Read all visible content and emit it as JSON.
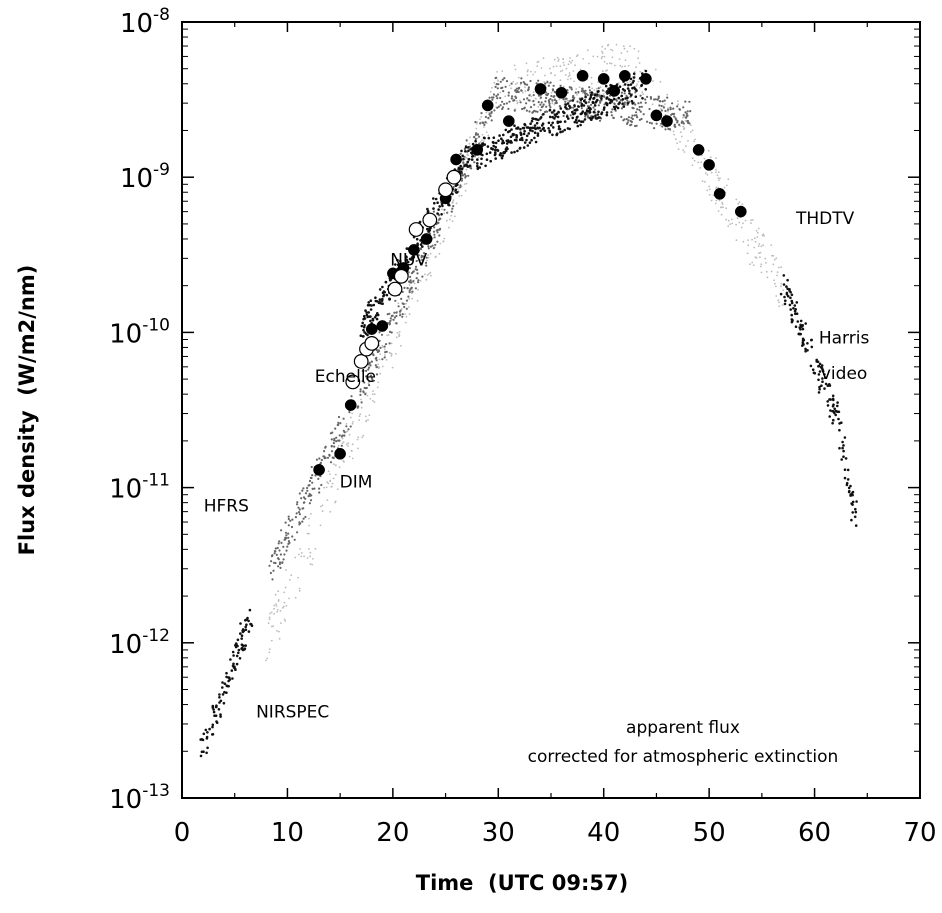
{
  "chart_data": {
    "type": "scatter",
    "xlabel": "Time  (UTC 09:57)",
    "ylabel": "Flux density  (W/m2/nm)",
    "xlim": [
      0,
      70
    ],
    "ylim": [
      1e-13,
      1e-08
    ],
    "y_scale": "log",
    "x_ticks": [
      0,
      10,
      20,
      30,
      40,
      50,
      60,
      70
    ],
    "y_ticks": [
      {
        "base": "10",
        "exp": "-13",
        "value": 1e-13
      },
      {
        "base": "10",
        "exp": "-12",
        "value": 1e-12
      },
      {
        "base": "10",
        "exp": "-11",
        "value": 1e-11
      },
      {
        "base": "10",
        "exp": "-10",
        "value": 1e-10
      },
      {
        "base": "10",
        "exp": "-9",
        "value": 1e-09
      },
      {
        "base": "10",
        "exp": "-8",
        "value": 1e-08
      }
    ],
    "grid": false,
    "colors": {
      "dim": "#000000",
      "echelle": "#ffffff",
      "dark_points": "#111111",
      "gray_points": "#666666",
      "light_points": "#bbbbbb"
    },
    "series": [
      {
        "name": "DIM",
        "marker": "filled-circle",
        "points": [
          [
            13,
            1.3e-11
          ],
          [
            15,
            1.65e-11
          ],
          [
            16,
            3.4e-11
          ],
          [
            18,
            1.05e-10
          ],
          [
            19,
            1.1e-10
          ],
          [
            20,
            2.4e-10
          ],
          [
            21,
            2.6e-10
          ],
          [
            22,
            3.4e-10
          ],
          [
            23.2,
            4e-10
          ],
          [
            25,
            7.3e-10
          ],
          [
            26,
            1.3e-09
          ],
          [
            28,
            1.5e-09
          ],
          [
            29,
            2.9e-09
          ],
          [
            31,
            2.3e-09
          ],
          [
            34,
            3.7e-09
          ],
          [
            36,
            3.5e-09
          ],
          [
            38,
            4.5e-09
          ],
          [
            40,
            4.3e-09
          ],
          [
            41,
            3.6e-09
          ],
          [
            42,
            4.5e-09
          ],
          [
            44,
            4.3e-09
          ],
          [
            45,
            2.5e-09
          ],
          [
            46,
            2.3e-09
          ],
          [
            49,
            1.5e-09
          ],
          [
            50,
            1.2e-09
          ],
          [
            51,
            7.8e-10
          ],
          [
            53,
            6e-10
          ]
        ]
      },
      {
        "name": "Echelle",
        "marker": "open-circle",
        "points": [
          [
            16.2,
            4.8e-11
          ],
          [
            17,
            6.5e-11
          ],
          [
            17.5,
            7.8e-11
          ],
          [
            18,
            8.5e-11
          ],
          [
            20.2,
            1.9e-10
          ],
          [
            20.8,
            2.3e-10
          ],
          [
            22.2,
            4.6e-10
          ],
          [
            23.5,
            5.3e-10
          ],
          [
            25,
            8.3e-10
          ],
          [
            25.8,
            1e-09
          ]
        ]
      },
      {
        "name": "HFRS",
        "marker": "gray-dots",
        "tone": "gray",
        "segments": [
          [
            8.5,
            3e-12,
            18,
            6e-11
          ],
          [
            18,
            6e-11,
            30,
            3.5e-09
          ],
          [
            30,
            3.5e-09,
            48,
            2.5e-09
          ]
        ]
      },
      {
        "name": "NIRSPEC",
        "marker": "dark-dots",
        "tone": "dark",
        "segments": [
          [
            1.8,
            2e-13,
            6.5,
            1.5e-12
          ]
        ]
      },
      {
        "name": "NUV",
        "marker": "dark-dots",
        "tone": "dark",
        "segments": [
          [
            17,
            1e-10,
            27,
            1.3e-09
          ],
          [
            27,
            1.3e-09,
            44,
            4e-09
          ]
        ]
      },
      {
        "name": "THDTV",
        "marker": "light-dots",
        "tone": "light",
        "segments": [
          [
            8,
            1e-12,
            30,
            3.5e-09
          ],
          [
            30,
            3.5e-09,
            43,
            5.5e-09
          ],
          [
            43,
            5.5e-09,
            57,
            2e-10
          ]
        ]
      },
      {
        "name": "Harris video",
        "marker": "dark-dots",
        "tone": "dark",
        "segments": [
          [
            57,
            2e-10,
            62,
            3e-11
          ],
          [
            62,
            3e-11,
            64,
            6e-12
          ]
        ]
      }
    ],
    "labels": [
      {
        "text": "NUV",
        "x": 21.5,
        "y": 2.7e-10
      },
      {
        "text": "Echelle",
        "x": 15.5,
        "y": 4.8e-11
      },
      {
        "text": "DIM",
        "x": 16.5,
        "y": 1e-11
      },
      {
        "text": "HFRS",
        "x": 4.2,
        "y": 7e-12
      },
      {
        "text": "NIRSPEC",
        "x": 10.5,
        "y": 3.3e-13
      },
      {
        "text": "THDTV",
        "x": 61,
        "y": 5e-10
      },
      {
        "text": "Harris",
        "x": 62.8,
        "y": 8.5e-11
      },
      {
        "text": "video",
        "x": 62.8,
        "y": 5e-11
      }
    ],
    "annotation": [
      "apparent flux",
      "corrected for atmospheric extinction"
    ]
  }
}
